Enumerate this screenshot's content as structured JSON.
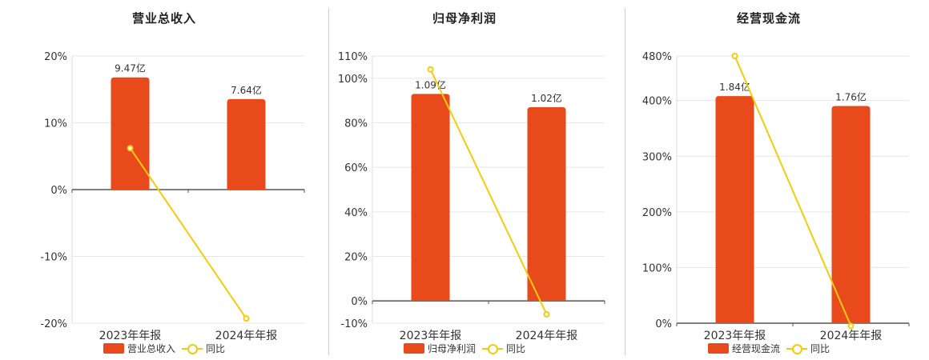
{
  "colors": {
    "bar": "#E84A1C",
    "line": "#F2CC0C",
    "grid": "#e6e6e6",
    "axis": "#555555",
    "text": "#333333"
  },
  "chart_data": [
    {
      "type": "bar",
      "title": "营业总收入",
      "categories": [
        "2023年年报",
        "2024年年报"
      ],
      "series": [
        {
          "name": "营业总收入",
          "type": "bar",
          "values": [
            9.47,
            7.64
          ],
          "labels": [
            "9.47亿",
            "7.64亿"
          ]
        },
        {
          "name": "同比",
          "type": "line",
          "values": [
            6.2,
            -19.3
          ]
        }
      ],
      "ylim": [
        -20,
        20
      ],
      "yticks": [
        20,
        10,
        0,
        -10,
        -20
      ],
      "ytick_labels": [
        "20%",
        "10%",
        "0%",
        "-10%",
        "-20%"
      ],
      "bar_zero": 0,
      "bar_max_scale": 9.47,
      "bar_max_value": 16.8
    },
    {
      "type": "bar",
      "title": "归母净利润",
      "categories": [
        "2023年年报",
        "2024年年报"
      ],
      "series": [
        {
          "name": "归母净利润",
          "type": "bar",
          "values": [
            1.09,
            1.02
          ],
          "labels": [
            "1.09亿",
            "1.02亿"
          ]
        },
        {
          "name": "同比",
          "type": "line",
          "values": [
            104,
            -6
          ]
        }
      ],
      "ylim": [
        -10,
        110
      ],
      "yticks": [
        110,
        100,
        80,
        60,
        40,
        20,
        0,
        -10
      ],
      "ytick_labels": [
        "110%",
        "100%",
        "80%",
        "60%",
        "40%",
        "20%",
        "0%",
        "-10%"
      ],
      "bar_zero": 0,
      "bar_max_scale": 1.09,
      "bar_max_value": 93
    },
    {
      "type": "bar",
      "title": "经营现金流",
      "categories": [
        "2023年年报",
        "2024年年报"
      ],
      "series": [
        {
          "name": "经营现金流",
          "type": "bar",
          "values": [
            1.84,
            1.76
          ],
          "labels": [
            "1.84亿",
            "1.76亿"
          ]
        },
        {
          "name": "同比",
          "type": "line",
          "values": [
            480,
            -5
          ]
        }
      ],
      "ylim": [
        0,
        480
      ],
      "yticks": [
        480,
        400,
        300,
        200,
        100,
        0
      ],
      "ytick_labels": [
        "480%",
        "400%",
        "300%",
        "200%",
        "100%",
        "0%"
      ],
      "bar_zero": 0,
      "bar_max_scale": 1.84,
      "bar_max_value": 408
    }
  ]
}
